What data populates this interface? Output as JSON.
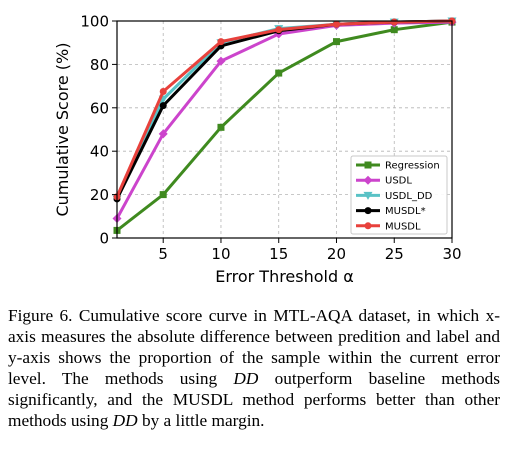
{
  "chart_data": {
    "type": "line",
    "title": "",
    "xlabel": "Error Threshold α",
    "ylabel": "Cumulative Score (%)",
    "xlim": [
      1,
      30
    ],
    "ylim": [
      0,
      100
    ],
    "xticks": [
      5,
      10,
      15,
      20,
      25,
      30
    ],
    "yticks": [
      0,
      20,
      40,
      60,
      80,
      100
    ],
    "grid": true,
    "legend_position": "lower-right",
    "x": [
      1,
      5,
      10,
      15,
      20,
      25,
      30
    ],
    "series": [
      {
        "name": "Regression",
        "color": "#3f8a1f",
        "marker": "square",
        "values": [
          3.5,
          20,
          51,
          76,
          90.5,
          96,
          99.5
        ]
      },
      {
        "name": "USDL",
        "color": "#cc44cc",
        "marker": "diamond",
        "values": [
          9,
          48,
          81.5,
          94,
          98,
          99,
          99.5
        ]
      },
      {
        "name": "USDL_DD",
        "color": "#59c2c6",
        "marker": "triangle-down",
        "values": [
          18,
          64,
          90,
          96.5,
          98.5,
          99.5,
          100
        ]
      },
      {
        "name": "MUSDL*",
        "color": "#000000",
        "marker": "circle",
        "values": [
          18,
          61,
          88.5,
          95.5,
          98.5,
          99.5,
          100
        ]
      },
      {
        "name": "MUSDL",
        "color": "#e8413c",
        "marker": "circle",
        "values": [
          19,
          67.5,
          90.5,
          96,
          98.5,
          99.5,
          100
        ]
      }
    ]
  },
  "caption": {
    "part1": "Figure 6. Cumulative score curve in MTL-AQA dataset, in which x-axis measures the absolute difference between predition and label and y-axis shows the proportion of the sample within the current error level.  The methods using ",
    "dd_1": "DD",
    "part2": " outperform baseline methods significantly, and the MUSDL method performs better than other methods using ",
    "dd_2": "DD",
    "part3": " by a little margin."
  }
}
